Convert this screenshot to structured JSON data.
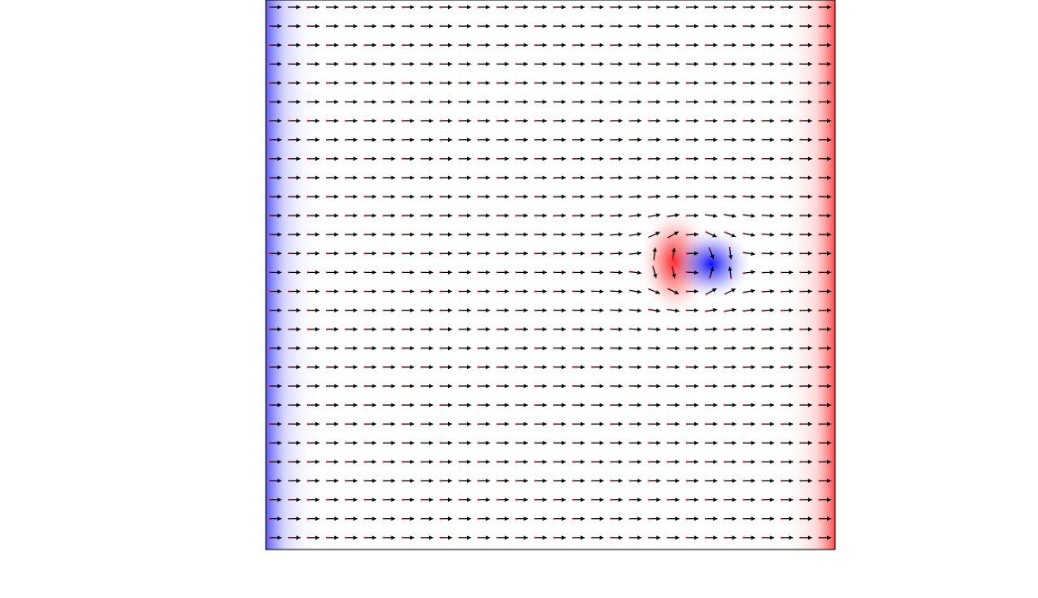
{
  "figure": {
    "type": "vector-field",
    "description_visible_text": "",
    "colors": {
      "positive_charge": "#ff0000",
      "negative_charge": "#0000ff",
      "arrow_stroke": "#000000",
      "arrow_head_left": "#ff0000",
      "arrow_head_right": "#0000ff",
      "background": "#ffffff",
      "frame": "#000000"
    },
    "grid": {
      "columns": 30,
      "rows": 29
    },
    "field": {
      "uniform_direction": "right",
      "left_boundary": "negative",
      "right_boundary": "positive",
      "dipole": {
        "positive_side": "left",
        "negative_side": "right",
        "column_fraction": 0.76,
        "row_fraction": 0.47
      }
    }
  }
}
